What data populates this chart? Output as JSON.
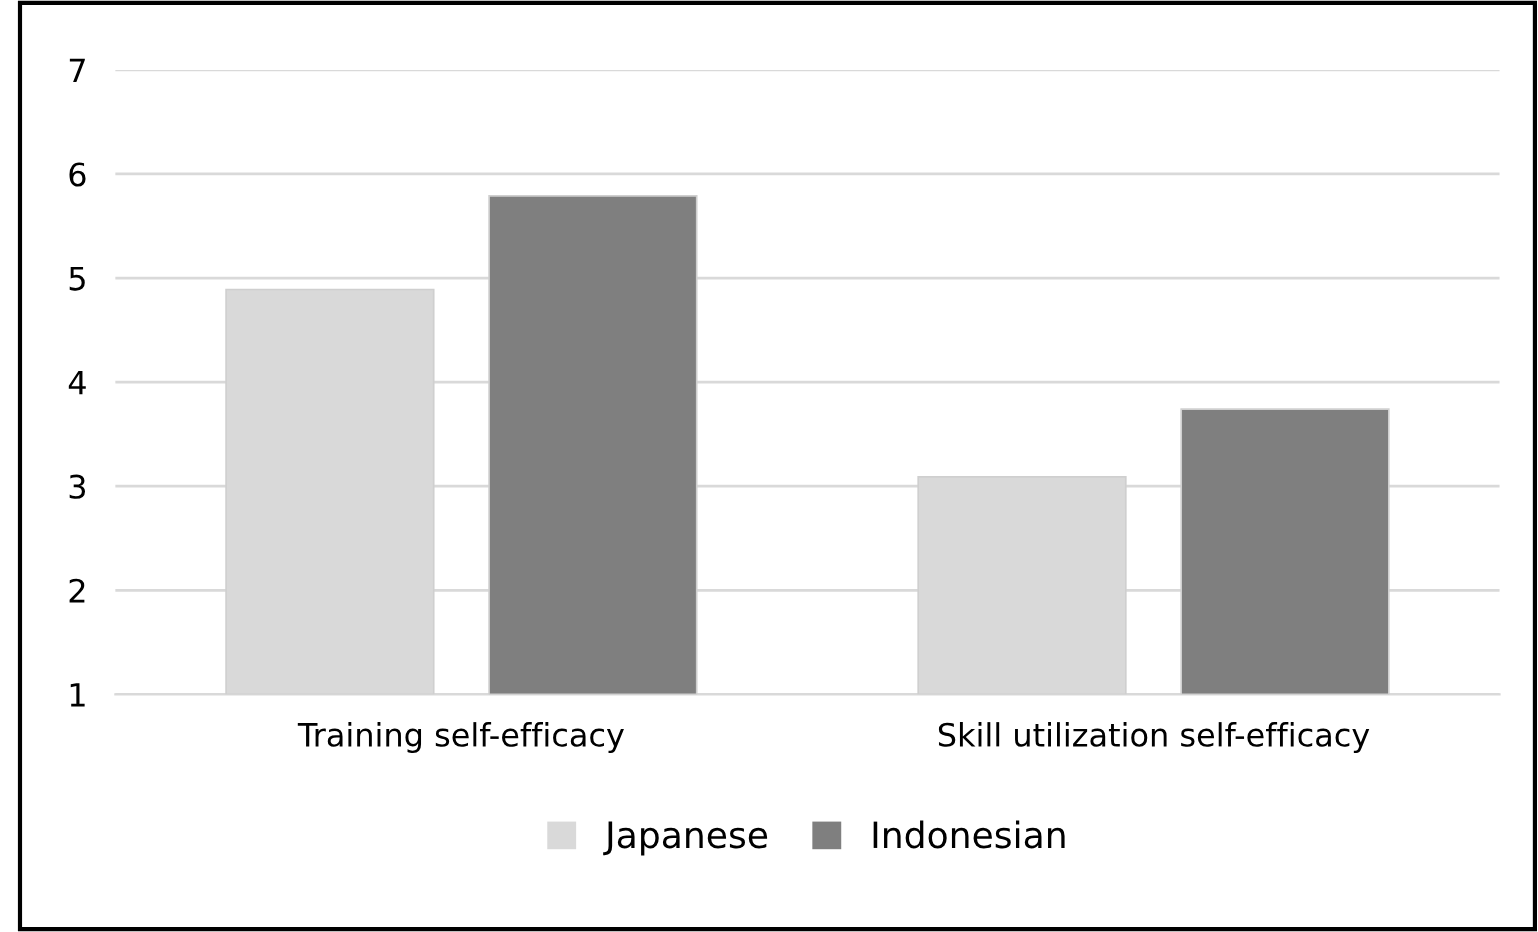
{
  "chart_data": {
    "type": "bar",
    "categories": [
      "Training self-efficacy",
      "Skill utilization self-efficacy"
    ],
    "series": [
      {
        "name": "Japanese",
        "color": "#d9d9d9",
        "values": [
          4.89,
          3.09
        ]
      },
      {
        "name": "Indonesian",
        "color": "#7f7f7f",
        "values": [
          5.79,
          3.74
        ]
      }
    ],
    "ylim": [
      1,
      7
    ],
    "yticks": [
      1,
      2,
      3,
      4,
      5,
      6,
      7
    ],
    "grid": "y",
    "legend": "bottom"
  }
}
